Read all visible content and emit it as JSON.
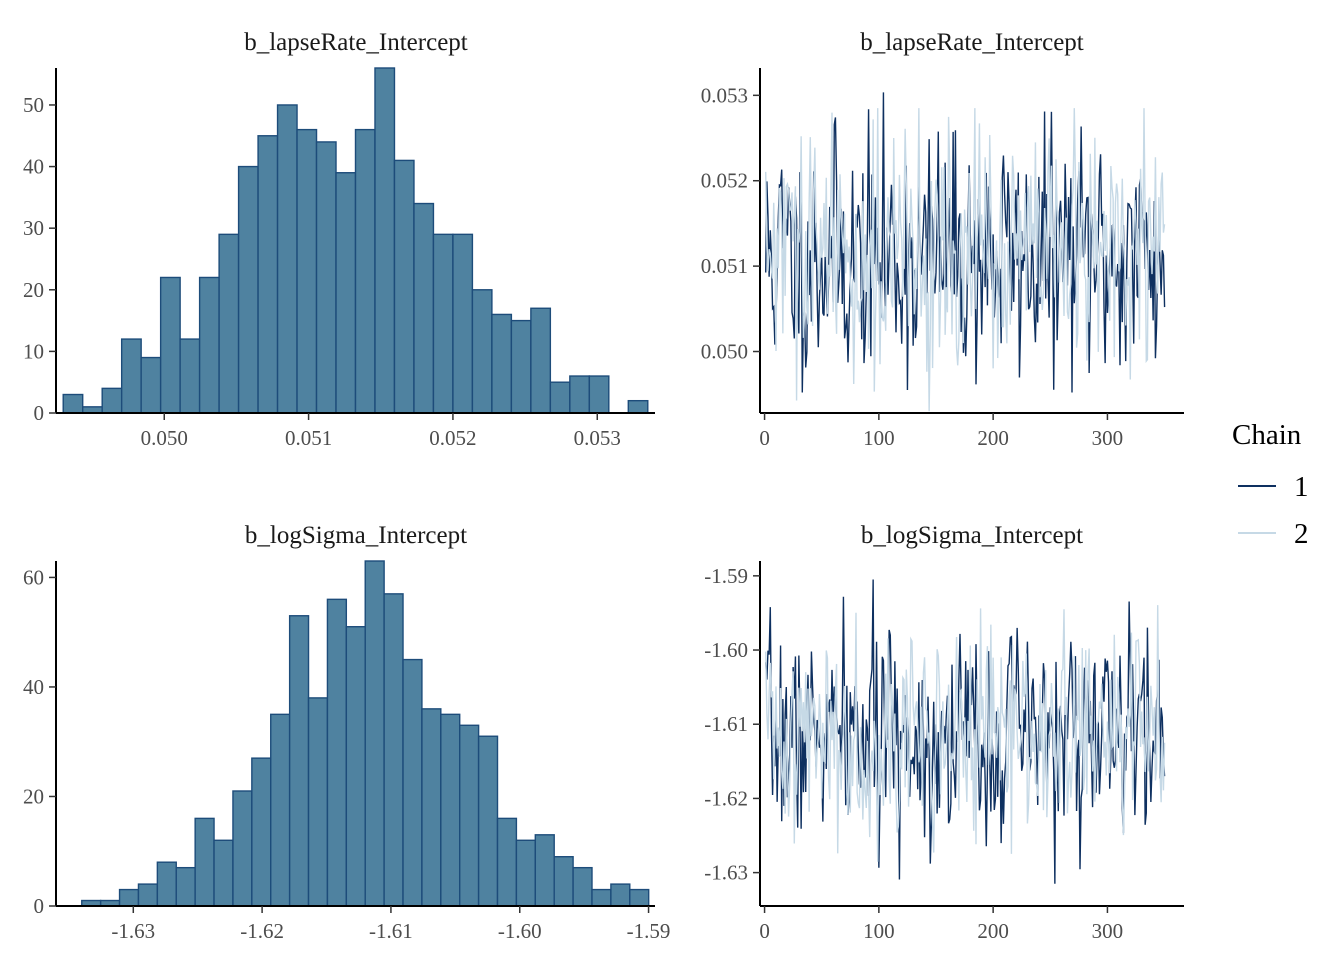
{
  "legend": {
    "title": "Chain",
    "entries": [
      {
        "label": "1",
        "color": "#0e3060"
      },
      {
        "label": "2",
        "color": "#c6d9e6"
      }
    ]
  },
  "colors": {
    "bar_fill": "#4f82a0",
    "bar_outline": "#1d4c7a",
    "chain1": "#0e3060",
    "chain2": "#c6d9e6"
  },
  "chart_data": [
    {
      "type": "bar",
      "kind": "histogram",
      "title": "b_lapseRate_Intercept",
      "xlabel": "",
      "ylabel": "",
      "x_ticks": [
        "0.050",
        "0.051",
        "0.052",
        "0.053"
      ],
      "x_tick_values": [
        0.05,
        0.051,
        0.052,
        0.053
      ],
      "y_ticks": [
        "0",
        "10",
        "20",
        "30",
        "40",
        "50"
      ],
      "y_tick_values": [
        0,
        10,
        20,
        30,
        40,
        50
      ],
      "bin_start": 0.0493,
      "bin_width": 0.000135,
      "counts": [
        3,
        1,
        4,
        12,
        9,
        22,
        12,
        22,
        29,
        40,
        45,
        50,
        46,
        44,
        39,
        46,
        56,
        41,
        34,
        29,
        29,
        20,
        16,
        15,
        17,
        5,
        6,
        6,
        0,
        2
      ],
      "xlim": [
        0.04925,
        0.0534
      ],
      "ylim": [
        0,
        56
      ]
    },
    {
      "type": "line",
      "kind": "trace",
      "title": "b_lapseRate_Intercept",
      "xlabel": "",
      "ylabel": "",
      "x_ticks": [
        "0",
        "100",
        "200",
        "300"
      ],
      "x_tick_values": [
        0,
        100,
        200,
        300
      ],
      "y_ticks": [
        "0.050",
        "0.051",
        "0.052",
        "0.053"
      ],
      "y_tick_values": [
        0.05,
        0.051,
        0.052,
        0.053
      ],
      "xlim": [
        -4,
        367
      ],
      "ylim": [
        0.04928,
        0.05332
      ],
      "iterations": 350,
      "series": [
        {
          "name": "1",
          "color": "#0e3060",
          "seed": 11,
          "mean": 0.05112,
          "sd": 0.0007,
          "min": 0.04952,
          "max": 0.05312
        },
        {
          "name": "2",
          "color": "#c6d9e6",
          "seed": 29,
          "mean": 0.05112,
          "sd": 0.0007,
          "min": 0.0493,
          "max": 0.05285
        }
      ]
    },
    {
      "type": "bar",
      "kind": "histogram",
      "title": "b_logSigma_Intercept",
      "xlabel": "",
      "ylabel": "",
      "x_ticks": [
        "-1.63",
        "-1.62",
        "-1.61",
        "-1.60",
        "-1.59"
      ],
      "x_tick_values": [
        -1.63,
        -1.62,
        -1.61,
        -1.6,
        -1.59
      ],
      "y_ticks": [
        "0",
        "20",
        "40",
        "60"
      ],
      "y_tick_values": [
        0,
        20,
        40,
        60
      ],
      "bin_start": -1.634,
      "bin_width": 0.001467,
      "counts": [
        1,
        1,
        3,
        4,
        8,
        7,
        16,
        12,
        21,
        27,
        35,
        53,
        38,
        56,
        51,
        63,
        57,
        45,
        36,
        35,
        33,
        31,
        16,
        12,
        13,
        9,
        7,
        3,
        4,
        3
      ],
      "xlim": [
        -1.636,
        -1.5895
      ],
      "ylim": [
        0,
        63
      ]
    },
    {
      "type": "line",
      "kind": "trace",
      "title": "b_logSigma_Intercept",
      "xlabel": "",
      "ylabel": "",
      "x_ticks": [
        "0",
        "100",
        "200",
        "300"
      ],
      "x_tick_values": [
        0,
        100,
        200,
        300
      ],
      "y_ticks": [
        "-1.59",
        "-1.60",
        "-1.61",
        "-1.62",
        "-1.63"
      ],
      "y_tick_values": [
        -1.59,
        -1.6,
        -1.61,
        -1.62,
        -1.63
      ],
      "xlim": [
        -4,
        367
      ],
      "ylim": [
        -1.6345,
        -1.588
      ],
      "iterations": 350,
      "series": [
        {
          "name": "1",
          "color": "#0e3060",
          "seed": 7,
          "mean": -1.6115,
          "sd": 0.0068,
          "min": -1.632,
          "max": -1.5905
        },
        {
          "name": "2",
          "color": "#c6d9e6",
          "seed": 41,
          "mean": -1.6115,
          "sd": 0.0068,
          "min": -1.6335,
          "max": -1.5925
        }
      ]
    }
  ]
}
